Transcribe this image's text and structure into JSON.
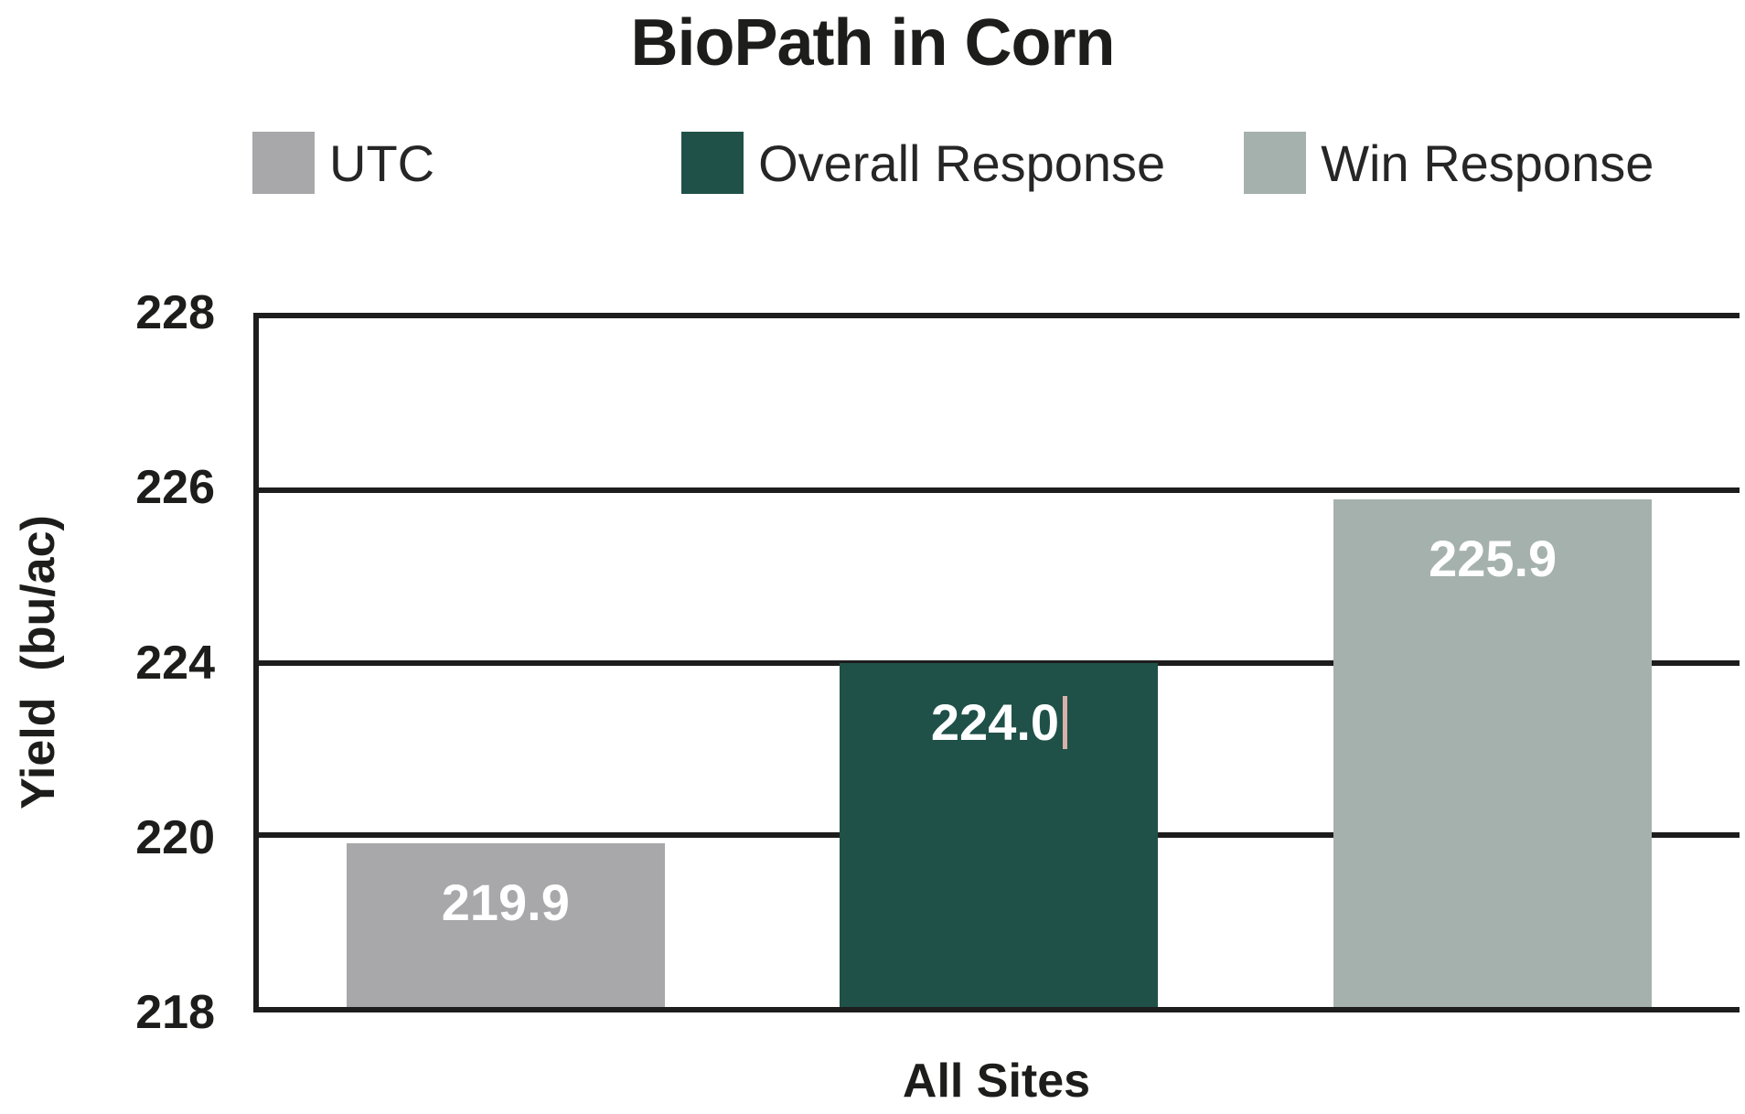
{
  "title": "BioPath in Corn",
  "legend": {
    "items": [
      {
        "label": "UTC",
        "color": "#a8a7aa"
      },
      {
        "label": "Overall Response",
        "color": "#1f5149"
      },
      {
        "label": "Win Response",
        "color": "#a5b1ac"
      }
    ]
  },
  "chart_data": {
    "type": "bar",
    "title": "BioPath in Corn",
    "categories": [
      "All Sites"
    ],
    "series": [
      {
        "name": "UTC",
        "values": [
          219.9
        ],
        "label": "219.9",
        "color": "#a8a7aa"
      },
      {
        "name": "Overall Response",
        "values": [
          224.0
        ],
        "label": "224.0",
        "color": "#1f5149"
      },
      {
        "name": "Win Response",
        "values": [
          225.9
        ],
        "label": "225.9",
        "color": "#a5b1ac"
      }
    ],
    "ylabel": "Yield  (bu/ac)",
    "xlabel": "All Sites",
    "ylim": [
      218,
      228
    ],
    "y_axis": {
      "tick_values": [
        218,
        220,
        224,
        226,
        228
      ],
      "tick_labels": [
        "218",
        "220",
        "224",
        "226",
        "228"
      ]
    },
    "grid": "horizontal",
    "legend_position": "top",
    "value_label_color": "#ffffff"
  },
  "annotations": {
    "text_cursor": {
      "after_label": "224.0",
      "color": "#d8b2aa"
    }
  },
  "colors": {
    "axis": "#1d1d1d",
    "text": "#1d1d1b",
    "background": "#ffffff"
  }
}
